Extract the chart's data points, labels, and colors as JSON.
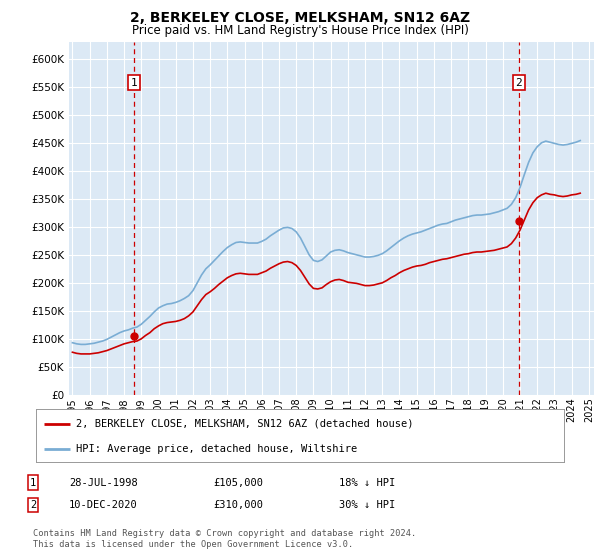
{
  "title": "2, BERKELEY CLOSE, MELKSHAM, SN12 6AZ",
  "subtitle": "Price paid vs. HM Land Registry's House Price Index (HPI)",
  "ylabel_ticks": [
    0,
    50000,
    100000,
    150000,
    200000,
    250000,
    300000,
    350000,
    400000,
    450000,
    500000,
    550000,
    600000
  ],
  "ylabel_labels": [
    "£0",
    "£50K",
    "£100K",
    "£150K",
    "£200K",
    "£250K",
    "£300K",
    "£350K",
    "£400K",
    "£450K",
    "£500K",
    "£550K",
    "£600K"
  ],
  "xlim_start": 1994.8,
  "xlim_end": 2025.3,
  "ylim": [
    0,
    630000
  ],
  "bg_color": "#dce9f5",
  "grid_color": "#ffffff",
  "sale1_x": 1998.57,
  "sale1_y": 105000,
  "sale2_x": 2020.94,
  "sale2_y": 310000,
  "legend_line1": "2, BERKELEY CLOSE, MELKSHAM, SN12 6AZ (detached house)",
  "legend_line2": "HPI: Average price, detached house, Wiltshire",
  "annotation1": "28-JUL-1998",
  "annotation1_price": "£105,000",
  "annotation1_hpi": "18% ↓ HPI",
  "annotation2": "10-DEC-2020",
  "annotation2_price": "£310,000",
  "annotation2_hpi": "30% ↓ HPI",
  "footer": "Contains HM Land Registry data © Crown copyright and database right 2024.\nThis data is licensed under the Open Government Licence v3.0.",
  "red_color": "#cc0000",
  "blue_color": "#7aadd4",
  "hpi_years": [
    1995.0,
    1995.25,
    1995.5,
    1995.75,
    1996.0,
    1996.25,
    1996.5,
    1996.75,
    1997.0,
    1997.25,
    1997.5,
    1997.75,
    1998.0,
    1998.25,
    1998.5,
    1998.75,
    1999.0,
    1999.25,
    1999.5,
    1999.75,
    2000.0,
    2000.25,
    2000.5,
    2000.75,
    2001.0,
    2001.25,
    2001.5,
    2001.75,
    2002.0,
    2002.25,
    2002.5,
    2002.75,
    2003.0,
    2003.25,
    2003.5,
    2003.75,
    2004.0,
    2004.25,
    2004.5,
    2004.75,
    2005.0,
    2005.25,
    2005.5,
    2005.75,
    2006.0,
    2006.25,
    2006.5,
    2006.75,
    2007.0,
    2007.25,
    2007.5,
    2007.75,
    2008.0,
    2008.25,
    2008.5,
    2008.75,
    2009.0,
    2009.25,
    2009.5,
    2009.75,
    2010.0,
    2010.25,
    2010.5,
    2010.75,
    2011.0,
    2011.25,
    2011.5,
    2011.75,
    2012.0,
    2012.25,
    2012.5,
    2012.75,
    2013.0,
    2013.25,
    2013.5,
    2013.75,
    2014.0,
    2014.25,
    2014.5,
    2014.75,
    2015.0,
    2015.25,
    2015.5,
    2015.75,
    2016.0,
    2016.25,
    2016.5,
    2016.75,
    2017.0,
    2017.25,
    2017.5,
    2017.75,
    2018.0,
    2018.25,
    2018.5,
    2018.75,
    2019.0,
    2019.25,
    2019.5,
    2019.75,
    2020.0,
    2020.25,
    2020.5,
    2020.75,
    2021.0,
    2021.25,
    2021.5,
    2021.75,
    2022.0,
    2022.25,
    2022.5,
    2022.75,
    2023.0,
    2023.25,
    2023.5,
    2023.75,
    2024.0,
    2024.25,
    2024.5
  ],
  "hpi_values": [
    93000,
    91000,
    90000,
    90000,
    91000,
    92000,
    94000,
    96000,
    99000,
    103000,
    107000,
    111000,
    114000,
    116000,
    119000,
    121000,
    126000,
    133000,
    140000,
    148000,
    155000,
    159000,
    162000,
    163000,
    165000,
    168000,
    172000,
    177000,
    186000,
    200000,
    214000,
    225000,
    232000,
    240000,
    248000,
    256000,
    263000,
    268000,
    272000,
    273000,
    272000,
    271000,
    271000,
    271000,
    274000,
    278000,
    284000,
    289000,
    294000,
    298000,
    299000,
    297000,
    291000,
    280000,
    265000,
    250000,
    240000,
    238000,
    241000,
    248000,
    255000,
    258000,
    259000,
    257000,
    254000,
    252000,
    250000,
    248000,
    246000,
    246000,
    247000,
    249000,
    252000,
    257000,
    263000,
    269000,
    275000,
    280000,
    284000,
    287000,
    289000,
    291000,
    294000,
    297000,
    300000,
    303000,
    305000,
    306000,
    309000,
    312000,
    314000,
    316000,
    318000,
    320000,
    321000,
    321000,
    322000,
    323000,
    325000,
    327000,
    330000,
    333000,
    340000,
    352000,
    370000,
    393000,
    415000,
    432000,
    443000,
    450000,
    453000,
    451000,
    449000,
    447000,
    446000,
    447000,
    449000,
    451000,
    454000
  ],
  "red_years": [
    1995.0,
    1995.25,
    1995.5,
    1995.75,
    1996.0,
    1996.25,
    1996.5,
    1996.75,
    1997.0,
    1997.25,
    1997.5,
    1997.75,
    1998.0,
    1998.25,
    1998.5,
    1998.75,
    1999.0,
    1999.25,
    1999.5,
    1999.75,
    2000.0,
    2000.25,
    2000.5,
    2000.75,
    2001.0,
    2001.25,
    2001.5,
    2001.75,
    2002.0,
    2002.25,
    2002.5,
    2002.75,
    2003.0,
    2003.25,
    2003.5,
    2003.75,
    2004.0,
    2004.25,
    2004.5,
    2004.75,
    2005.0,
    2005.25,
    2005.5,
    2005.75,
    2006.0,
    2006.25,
    2006.5,
    2006.75,
    2007.0,
    2007.25,
    2007.5,
    2007.75,
    2008.0,
    2008.25,
    2008.5,
    2008.75,
    2009.0,
    2009.25,
    2009.5,
    2009.75,
    2010.0,
    2010.25,
    2010.5,
    2010.75,
    2011.0,
    2011.25,
    2011.5,
    2011.75,
    2012.0,
    2012.25,
    2012.5,
    2012.75,
    2013.0,
    2013.25,
    2013.5,
    2013.75,
    2014.0,
    2014.25,
    2014.5,
    2014.75,
    2015.0,
    2015.25,
    2015.5,
    2015.75,
    2016.0,
    2016.25,
    2016.5,
    2016.75,
    2017.0,
    2017.25,
    2017.5,
    2017.75,
    2018.0,
    2018.25,
    2018.5,
    2018.75,
    2019.0,
    2019.25,
    2019.5,
    2019.75,
    2020.0,
    2020.25,
    2020.5,
    2020.75,
    2021.0,
    2021.25,
    2021.5,
    2021.75,
    2022.0,
    2022.25,
    2022.5,
    2022.75,
    2023.0,
    2023.25,
    2023.5,
    2023.75,
    2024.0,
    2024.25,
    2024.5
  ],
  "red_values": [
    76000,
    74000,
    73000,
    73000,
    73000,
    74000,
    75000,
    77000,
    79000,
    82000,
    85000,
    88000,
    91000,
    93000,
    95000,
    96000,
    100000,
    106000,
    111000,
    118000,
    123000,
    127000,
    129000,
    130000,
    131000,
    133000,
    136000,
    141000,
    148000,
    159000,
    170000,
    179000,
    184000,
    190000,
    197000,
    203000,
    209000,
    213000,
    216000,
    217000,
    216000,
    215000,
    215000,
    215000,
    218000,
    221000,
    226000,
    230000,
    234000,
    237000,
    238000,
    236000,
    231000,
    222000,
    210000,
    198000,
    190000,
    189000,
    191000,
    197000,
    202000,
    205000,
    206000,
    204000,
    201000,
    200000,
    199000,
    197000,
    195000,
    195000,
    196000,
    198000,
    200000,
    204000,
    209000,
    213000,
    218000,
    222000,
    225000,
    228000,
    230000,
    231000,
    233000,
    236000,
    238000,
    240000,
    242000,
    243000,
    245000,
    247000,
    249000,
    251000,
    252000,
    254000,
    255000,
    255000,
    256000,
    257000,
    258000,
    260000,
    262000,
    264000,
    270000,
    280000,
    294000,
    312000,
    330000,
    343000,
    352000,
    357000,
    360000,
    358000,
    357000,
    355000,
    354000,
    355000,
    357000,
    358000,
    360000
  ]
}
